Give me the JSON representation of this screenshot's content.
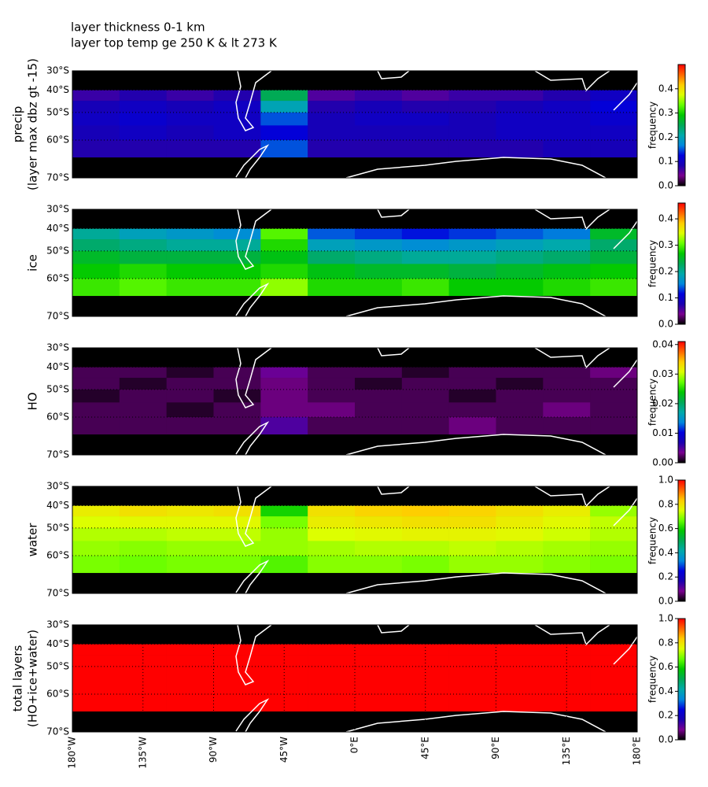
{
  "header": {
    "lines": [
      "layer thickness 0-1 km",
      "layer top temp ge 250 K & lt 273 K"
    ]
  },
  "colormap": [
    "#000000",
    "#7a0090",
    "#1a00b0",
    "#0000dd",
    "#0088dd",
    "#00aaaa",
    "#00aa55",
    "#00c800",
    "#66ff00",
    "#ddff00",
    "#ffcc00",
    "#ff6600",
    "#ff0000"
  ],
  "chart_data": [
    {
      "type": "heatmap",
      "ylabel": [
        "precip",
        "(layer max dbz gt -15)"
      ],
      "xbins": [
        -180,
        -150,
        -120,
        -90,
        -60,
        -30,
        0,
        30,
        60,
        90,
        120,
        150,
        180
      ],
      "ybins": [
        -40,
        -45,
        -50,
        -55,
        -60,
        -65
      ],
      "values": [
        [
          0.07,
          0.08,
          0.07,
          0.08,
          0.25,
          0.06,
          0.07,
          0.06,
          0.07,
          0.07,
          0.08,
          0.1
        ],
        [
          0.09,
          0.1,
          0.09,
          0.1,
          0.2,
          0.08,
          0.09,
          0.08,
          0.08,
          0.09,
          0.1,
          0.12
        ],
        [
          0.1,
          0.11,
          0.1,
          0.1,
          0.15,
          0.09,
          0.1,
          0.1,
          0.09,
          0.1,
          0.1,
          0.11
        ],
        [
          0.09,
          0.1,
          0.09,
          0.1,
          0.12,
          0.09,
          0.09,
          0.09,
          0.09,
          0.1,
          0.1,
          0.1
        ],
        [
          0.08,
          0.08,
          0.08,
          0.08,
          0.15,
          0.08,
          0.08,
          0.08,
          0.08,
          0.08,
          0.09,
          0.09
        ]
      ],
      "xlim": [
        -180,
        180
      ],
      "ylim": [
        -70,
        -30
      ],
      "yticks": [
        {
          "value": -30,
          "label": "30°S"
        },
        {
          "value": -40,
          "label": "40°S"
        },
        {
          "value": -50,
          "label": "50°S"
        },
        {
          "value": -60,
          "label": "60°S"
        },
        {
          "value": -70,
          "label": "70°S"
        }
      ],
      "grid": true,
      "colorbar": {
        "label": "frequency",
        "lim": [
          0,
          0.5
        ],
        "ticks": [
          {
            "value": 0,
            "label": "0.0"
          },
          0.1,
          0.2,
          0.3,
          0.4
        ]
      }
    },
    {
      "type": "heatmap",
      "ylabel": [
        "ice"
      ],
      "xbins": [
        -180,
        -150,
        -120,
        -90,
        -60,
        -30,
        0,
        30,
        60,
        90,
        120,
        150,
        180
      ],
      "ybins": [
        -40,
        -45,
        -50,
        -55,
        -60,
        -65
      ],
      "values": [
        [
          0.2,
          0.18,
          0.17,
          0.16,
          0.3,
          0.14,
          0.13,
          0.12,
          0.13,
          0.14,
          0.15,
          0.25
        ],
        [
          0.22,
          0.21,
          0.2,
          0.2,
          0.28,
          0.18,
          0.17,
          0.16,
          0.17,
          0.18,
          0.19,
          0.22
        ],
        [
          0.25,
          0.24,
          0.24,
          0.24,
          0.26,
          0.22,
          0.21,
          0.2,
          0.2,
          0.21,
          0.22,
          0.24
        ],
        [
          0.27,
          0.28,
          0.27,
          0.27,
          0.28,
          0.26,
          0.25,
          0.25,
          0.24,
          0.25,
          0.26,
          0.27
        ],
        [
          0.29,
          0.3,
          0.29,
          0.29,
          0.32,
          0.28,
          0.28,
          0.29,
          0.27,
          0.27,
          0.28,
          0.29
        ]
      ],
      "xlim": [
        -180,
        180
      ],
      "ylim": [
        -70,
        -30
      ],
      "yticks": [
        {
          "value": -30,
          "label": "30°S"
        },
        {
          "value": -40,
          "label": "40°S"
        },
        {
          "value": -50,
          "label": "50°S"
        },
        {
          "value": -60,
          "label": "60°S"
        },
        {
          "value": -70,
          "label": "70°S"
        }
      ],
      "grid": true,
      "colorbar": {
        "label": "frequency",
        "lim": [
          0,
          0.46
        ],
        "ticks": [
          {
            "value": 0,
            "label": "0.0"
          },
          0.1,
          0.2,
          0.3,
          0.4
        ]
      }
    },
    {
      "type": "heatmap",
      "ylabel": [
        "HO"
      ],
      "xbins": [
        -180,
        -150,
        -120,
        -90,
        -60,
        -30,
        0,
        30,
        60,
        90,
        120,
        150,
        180
      ],
      "ybins": [
        -40,
        -45,
        -50,
        -55,
        -60,
        -65
      ],
      "values": [
        [
          0.002,
          0.002,
          0.001,
          0.002,
          0.004,
          0.002,
          0.002,
          0.001,
          0.002,
          0.002,
          0.002,
          0.003
        ],
        [
          0.002,
          0.001,
          0.002,
          0.002,
          0.003,
          0.002,
          0.001,
          0.002,
          0.002,
          0.001,
          0.002,
          0.002
        ],
        [
          0.001,
          0.002,
          0.002,
          0.001,
          0.003,
          0.002,
          0.002,
          0.002,
          0.001,
          0.002,
          0.002,
          0.002
        ],
        [
          0.002,
          0.002,
          0.001,
          0.002,
          0.003,
          0.003,
          0.002,
          0.002,
          0.002,
          0.002,
          0.003,
          0.002
        ],
        [
          0.002,
          0.002,
          0.002,
          0.002,
          0.005,
          0.002,
          0.002,
          0.002,
          0.003,
          0.002,
          0.002,
          0.002
        ]
      ],
      "xlim": [
        -180,
        180
      ],
      "ylim": [
        -70,
        -30
      ],
      "yticks": [
        {
          "value": -30,
          "label": "30°S"
        },
        {
          "value": -40,
          "label": "40°S"
        },
        {
          "value": -50,
          "label": "50°S"
        },
        {
          "value": -60,
          "label": "60°S"
        },
        {
          "value": -70,
          "label": "70°S"
        }
      ],
      "grid": true,
      "colorbar": {
        "label": "frequency",
        "lim": [
          0,
          0.041
        ],
        "ticks": [
          {
            "value": 0,
            "label": "0.00"
          },
          0.01,
          0.02,
          0.03,
          0.04
        ]
      }
    },
    {
      "type": "heatmap",
      "ylabel": [
        "water"
      ],
      "xbins": [
        -180,
        -150,
        -120,
        -90,
        -60,
        -30,
        0,
        30,
        60,
        90,
        120,
        150,
        180
      ],
      "ybins": [
        -40,
        -45,
        -50,
        -55,
        -60,
        -65
      ],
      "values": [
        [
          0.78,
          0.8,
          0.79,
          0.8,
          0.6,
          0.8,
          0.82,
          0.83,
          0.82,
          0.8,
          0.78,
          0.7
        ],
        [
          0.75,
          0.76,
          0.76,
          0.76,
          0.68,
          0.78,
          0.79,
          0.8,
          0.8,
          0.78,
          0.76,
          0.73
        ],
        [
          0.72,
          0.72,
          0.73,
          0.73,
          0.7,
          0.75,
          0.76,
          0.77,
          0.77,
          0.76,
          0.74,
          0.72
        ],
        [
          0.7,
          0.69,
          0.7,
          0.7,
          0.7,
          0.71,
          0.72,
          0.72,
          0.73,
          0.72,
          0.71,
          0.7
        ],
        [
          0.68,
          0.67,
          0.68,
          0.68,
          0.65,
          0.69,
          0.69,
          0.68,
          0.7,
          0.7,
          0.69,
          0.68
        ]
      ],
      "xlim": [
        -180,
        180
      ],
      "ylim": [
        -70,
        -30
      ],
      "yticks": [
        {
          "value": -30,
          "label": "30°S"
        },
        {
          "value": -40,
          "label": "40°S"
        },
        {
          "value": -50,
          "label": "50°S"
        },
        {
          "value": -60,
          "label": "60°S"
        },
        {
          "value": -70,
          "label": "70°S"
        }
      ],
      "grid": true,
      "colorbar": {
        "label": "frequency",
        "lim": [
          0,
          1
        ],
        "ticks": [
          {
            "value": 0,
            "label": "0.0"
          },
          0.2,
          0.4,
          0.6,
          0.8,
          {
            "value": 1,
            "label": "1.0"
          }
        ]
      }
    },
    {
      "type": "heatmap",
      "ylabel": [
        "total layers",
        "(HO+ice+water)"
      ],
      "xbins": [
        -180,
        -150,
        -120,
        -90,
        -60,
        -30,
        0,
        30,
        60,
        90,
        120,
        150,
        180
      ],
      "ybins": [
        -40,
        -45,
        -50,
        -55,
        -60,
        -65
      ],
      "values": [
        [
          1,
          1,
          1,
          1,
          1,
          1,
          1,
          1,
          1,
          1,
          1,
          1
        ],
        [
          1,
          1,
          1,
          1,
          1,
          1,
          1,
          1,
          1,
          1,
          1,
          1
        ],
        [
          1,
          1,
          1,
          1,
          1,
          1,
          1,
          1,
          1,
          1,
          1,
          1
        ],
        [
          1,
          1,
          1,
          1,
          1,
          1,
          1,
          1,
          1,
          1,
          1,
          1
        ],
        [
          1,
          1,
          1,
          1,
          1,
          1,
          1,
          1,
          1,
          1,
          1,
          1
        ]
      ],
      "xlim": [
        -180,
        180
      ],
      "ylim": [
        -70,
        -30
      ],
      "yticks": [
        {
          "value": -30,
          "label": "30°S"
        },
        {
          "value": -40,
          "label": "40°S"
        },
        {
          "value": -50,
          "label": "50°S"
        },
        {
          "value": -60,
          "label": "60°S"
        },
        {
          "value": -70,
          "label": "70°S"
        }
      ],
      "xticks": [
        {
          "value": -180,
          "label": "180°W"
        },
        {
          "value": -135,
          "label": "135°W"
        },
        {
          "value": -90,
          "label": "90°W"
        },
        {
          "value": -45,
          "label": "45°W"
        },
        {
          "value": 0,
          "label": "0°E"
        },
        {
          "value": 45,
          "label": "45°E"
        },
        {
          "value": 90,
          "label": "90°E"
        },
        {
          "value": 135,
          "label": "135°E"
        },
        {
          "value": 180,
          "label": "180°E"
        }
      ],
      "grid": true,
      "colorbar": {
        "label": "frequency",
        "lim": [
          0,
          1
        ],
        "ticks": [
          {
            "value": 0,
            "label": "0.0"
          },
          0.2,
          0.4,
          0.6,
          0.8,
          {
            "value": 1,
            "label": "1.0"
          }
        ]
      }
    }
  ]
}
